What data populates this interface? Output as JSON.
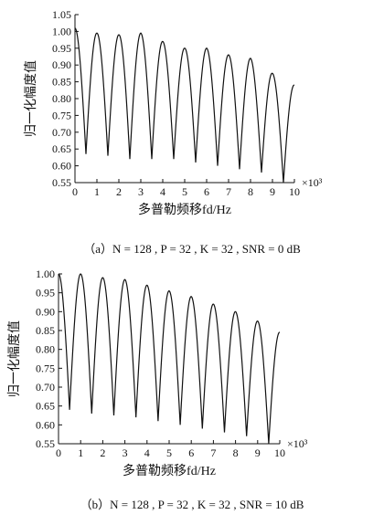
{
  "chart_data": [
    {
      "type": "line",
      "caption_prefix": "（a）",
      "caption": "N = 128 , P = 32 , K = 32 , SNR = 0 dB",
      "xlabel": "多普勒频移fd/Hz",
      "ylabel": "归一化幅度值",
      "x_multiplier": "×10³",
      "xlim": [
        0,
        10
      ],
      "ylim": [
        0.55,
        1.05
      ],
      "xticks": [
        "0",
        "1",
        "2",
        "3",
        "4",
        "5",
        "6",
        "7",
        "8",
        "9",
        "10"
      ],
      "yticks": [
        "0.55",
        "0.60",
        "0.65",
        "0.70",
        "0.75",
        "0.80",
        "0.85",
        "0.90",
        "0.95",
        "1.00",
        "1.05"
      ],
      "series": [
        {
          "peaks_x": [
            0.0,
            1.0,
            2.0,
            3.0,
            4.0,
            5.0,
            6.0,
            7.0,
            8.0,
            9.0,
            10.0
          ],
          "peaks_y": [
            1.01,
            0.995,
            0.99,
            0.995,
            0.97,
            0.95,
            0.95,
            0.93,
            0.92,
            0.875,
            0.84
          ],
          "minima_x": [
            0.5,
            1.5,
            2.5,
            3.5,
            4.5,
            5.5,
            6.5,
            7.5,
            8.5,
            9.5
          ],
          "minima_y": [
            0.635,
            0.63,
            0.62,
            0.62,
            0.62,
            0.61,
            0.6,
            0.59,
            0.58,
            0.55
          ]
        }
      ]
    },
    {
      "type": "line",
      "caption_prefix": "（b）",
      "caption": "N = 128 , P = 32 , K = 32 , SNR = 10 dB",
      "xlabel": "多普勒频移fd/Hz",
      "ylabel": "归一化幅度值",
      "x_multiplier": "×10³",
      "xlim": [
        0,
        10
      ],
      "ylim": [
        0.55,
        1.0
      ],
      "xticks": [
        "0",
        "1",
        "2",
        "3",
        "4",
        "5",
        "6",
        "7",
        "8",
        "9",
        "10"
      ],
      "yticks": [
        "0.55",
        "0.60",
        "0.65",
        "0.70",
        "0.75",
        "0.80",
        "0.85",
        "0.90",
        "0.95",
        "1.00"
      ],
      "series": [
        {
          "peaks_x": [
            0.0,
            1.0,
            2.0,
            3.0,
            4.0,
            5.0,
            6.0,
            7.0,
            8.0,
            9.0,
            10.0
          ],
          "peaks_y": [
            1.0,
            1.0,
            0.99,
            0.985,
            0.97,
            0.955,
            0.94,
            0.92,
            0.9,
            0.875,
            0.845
          ],
          "minima_x": [
            0.5,
            1.5,
            2.5,
            3.5,
            4.5,
            5.5,
            6.5,
            7.5,
            8.5,
            9.5
          ],
          "minima_y": [
            0.64,
            0.63,
            0.625,
            0.62,
            0.61,
            0.6,
            0.59,
            0.58,
            0.57,
            0.55
          ]
        }
      ]
    }
  ]
}
